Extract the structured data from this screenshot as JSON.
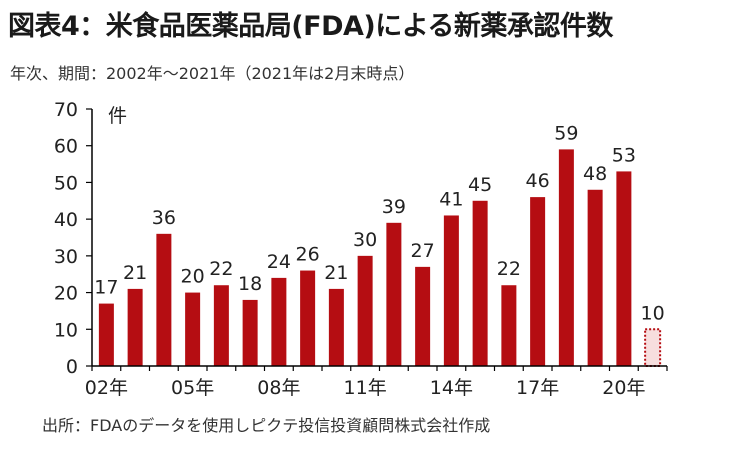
{
  "title": "図表4：米食品医薬品局(FDA)による新薬承認件数",
  "subtitle": "年次、期間：2002年～2021年（2021年は2月末時点）",
  "source": "出所：FDAのデータを使用しピクテ投信投資顧問株式会社作成",
  "colors": {
    "bar": "#b50d12",
    "partial_bar_fill": "#f7dede",
    "partial_bar_border": "#b50d12",
    "axis": "#000000"
  },
  "chart_data": {
    "type": "bar",
    "title": "図表4：米食品医薬品局(FDA)による新薬承認件数",
    "subtitle": "年次、期間：2002年～2021年（2021年は2月末時点）",
    "ylabel": "件",
    "ylim": [
      0,
      70
    ],
    "yticks": [
      0,
      10,
      20,
      30,
      40,
      50,
      60,
      70
    ],
    "xtick_labels": [
      "02年",
      "05年",
      "08年",
      "11年",
      "14年",
      "17年",
      "20年"
    ],
    "xtick_years": [
      2002,
      2005,
      2008,
      2011,
      2014,
      2017,
      2020
    ],
    "categories": [
      2002,
      2003,
      2004,
      2005,
      2006,
      2007,
      2008,
      2009,
      2010,
      2011,
      2012,
      2013,
      2014,
      2015,
      2016,
      2017,
      2018,
      2019,
      2020,
      2021
    ],
    "values": [
      17,
      21,
      36,
      20,
      22,
      18,
      24,
      26,
      21,
      30,
      39,
      27,
      41,
      45,
      22,
      46,
      59,
      48,
      53,
      10
    ],
    "partial_last": true,
    "grid": false
  }
}
